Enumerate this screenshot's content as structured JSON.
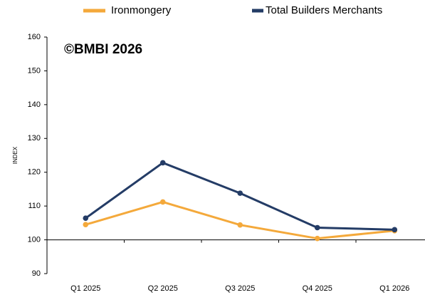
{
  "chart_data": {
    "type": "line",
    "annotation": "©BMBI 2026",
    "y_label": "INDEX",
    "categories": [
      "Q1 2025",
      "Q2 2025",
      "Q3 2025",
      "Q4 2025",
      "Q1 2026"
    ],
    "series": [
      {
        "name": "Ironmongery",
        "color": "#f4a93b",
        "values": [
          104.5,
          111.2,
          104.4,
          100.4,
          102.7
        ]
      },
      {
        "name": "Total Builders Merchants",
        "color": "#243c66",
        "values": [
          106.4,
          122.8,
          113.8,
          103.6,
          103.0
        ]
      }
    ],
    "ylim": [
      90,
      160
    ],
    "yticks": [
      90,
      100,
      110,
      120,
      130,
      140,
      150,
      160
    ],
    "x_axis_at": 100,
    "legend": "top"
  }
}
